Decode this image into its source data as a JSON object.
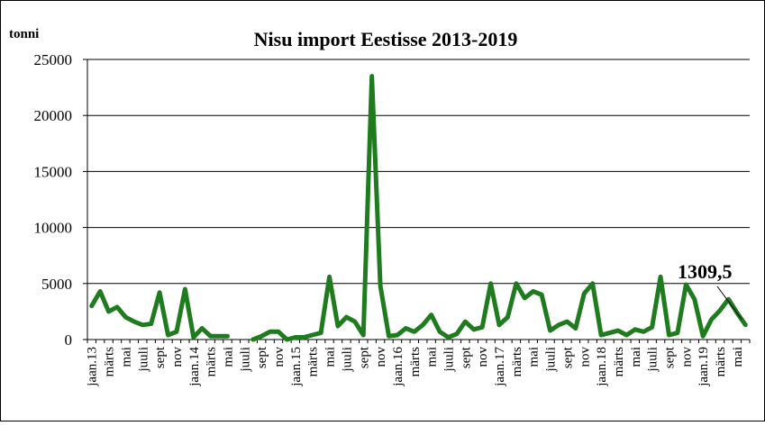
{
  "chart_data": {
    "type": "line",
    "title": "Nisu import  Eestisse 2013-2019",
    "ylabel": "tonni",
    "xlabel": "",
    "ylim": [
      0,
      25000
    ],
    "yticks": [
      0,
      5000,
      10000,
      15000,
      20000,
      25000
    ],
    "grid": "horizontal",
    "legend": "none",
    "line_color": "#1e7b1e",
    "x_tick_labels": [
      "jaan.13",
      "märts",
      "mai",
      "juuli",
      "sept",
      "nov",
      "jaan.14",
      "märts",
      "mai",
      "juuli",
      "sept",
      "nov",
      "jaan.15",
      "märts",
      "mai",
      "juuli",
      "sept",
      "nov",
      "jaan.16",
      "märts",
      "mai",
      "juuli",
      "sept",
      "nov",
      "jaan.17",
      "märts",
      "mai",
      "juuli",
      "sept",
      "nov",
      "jaan.18",
      "märts",
      "mai",
      "juuli",
      "sept",
      "nov",
      "jaan.19",
      "märts",
      "mai"
    ],
    "series": [
      {
        "values": [
          3000,
          4300,
          2500,
          2900,
          2000,
          1600,
          1300,
          1400,
          4200,
          400,
          700,
          4500,
          200,
          1000,
          300,
          300,
          300,
          null,
          null,
          0,
          300,
          700,
          700,
          0,
          200,
          200,
          400,
          600,
          5600,
          1200,
          2000,
          1600,
          400,
          23500,
          4800,
          300,
          400,
          1000,
          700,
          1300,
          2200,
          700,
          200,
          500,
          1600,
          900,
          1100,
          5000,
          1300,
          2000,
          5000,
          3700,
          4300,
          4000,
          800,
          1300,
          1600,
          1000,
          4100,
          5000,
          400,
          600,
          800,
          400,
          900,
          700,
          1100,
          5600,
          400,
          600,
          4900,
          3600,
          300,
          1800,
          2600,
          3600,
          2400,
          1309.5
        ]
      }
    ],
    "annotations": [
      {
        "text": "1309,5",
        "target_index": 77
      }
    ]
  }
}
